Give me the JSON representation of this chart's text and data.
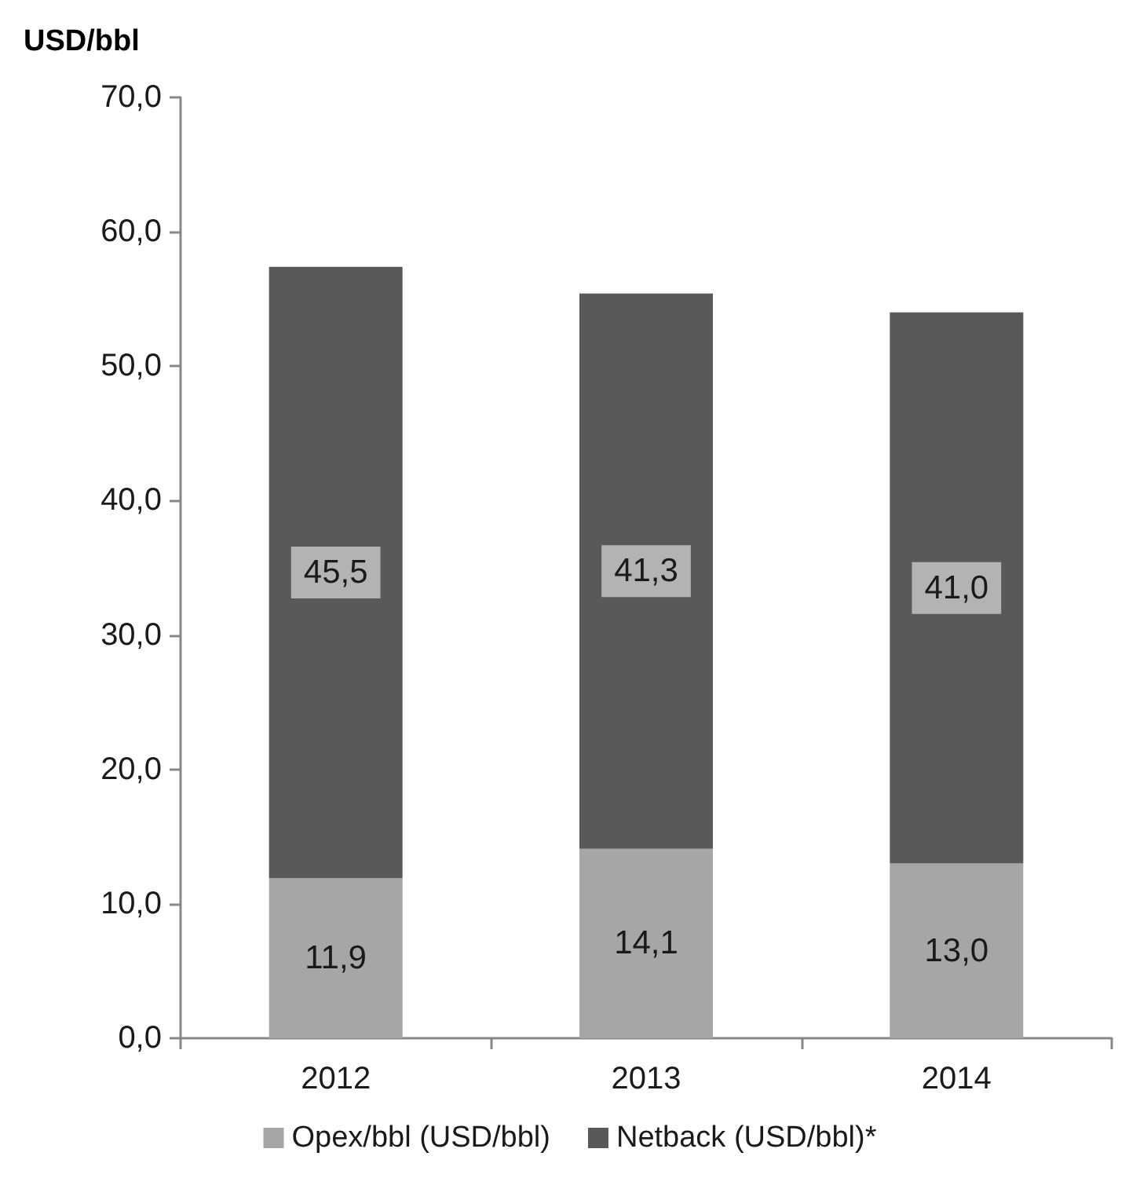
{
  "chart_data": {
    "type": "bar",
    "stacked": true,
    "ylabel": "USD/bbl",
    "categories": [
      "2012",
      "2013",
      "2014"
    ],
    "series": [
      {
        "name": "Opex/bbl (USD/bbl)",
        "color": "#a6a6a6",
        "values": [
          11.9,
          14.1,
          13.0
        ],
        "value_labels": [
          "11,9",
          "14,1",
          "13,0"
        ]
      },
      {
        "name": "Netback (USD/bbl)*",
        "color": "#595959",
        "values": [
          45.5,
          41.3,
          41.0
        ],
        "value_labels": [
          "45,5",
          "41,3",
          "41,0"
        ]
      }
    ],
    "ylim": [
      0,
      70
    ],
    "yticks": [
      {
        "value": 0,
        "label": "0,0"
      },
      {
        "value": 10,
        "label": "10,0"
      },
      {
        "value": 20,
        "label": "20,0"
      },
      {
        "value": 30,
        "label": "30,0"
      },
      {
        "value": 40,
        "label": "40,0"
      },
      {
        "value": 50,
        "label": "50,0"
      },
      {
        "value": 60,
        "label": "60,0"
      },
      {
        "value": 70,
        "label": "70,0"
      }
    ],
    "grid": false,
    "legend": "bottom"
  }
}
